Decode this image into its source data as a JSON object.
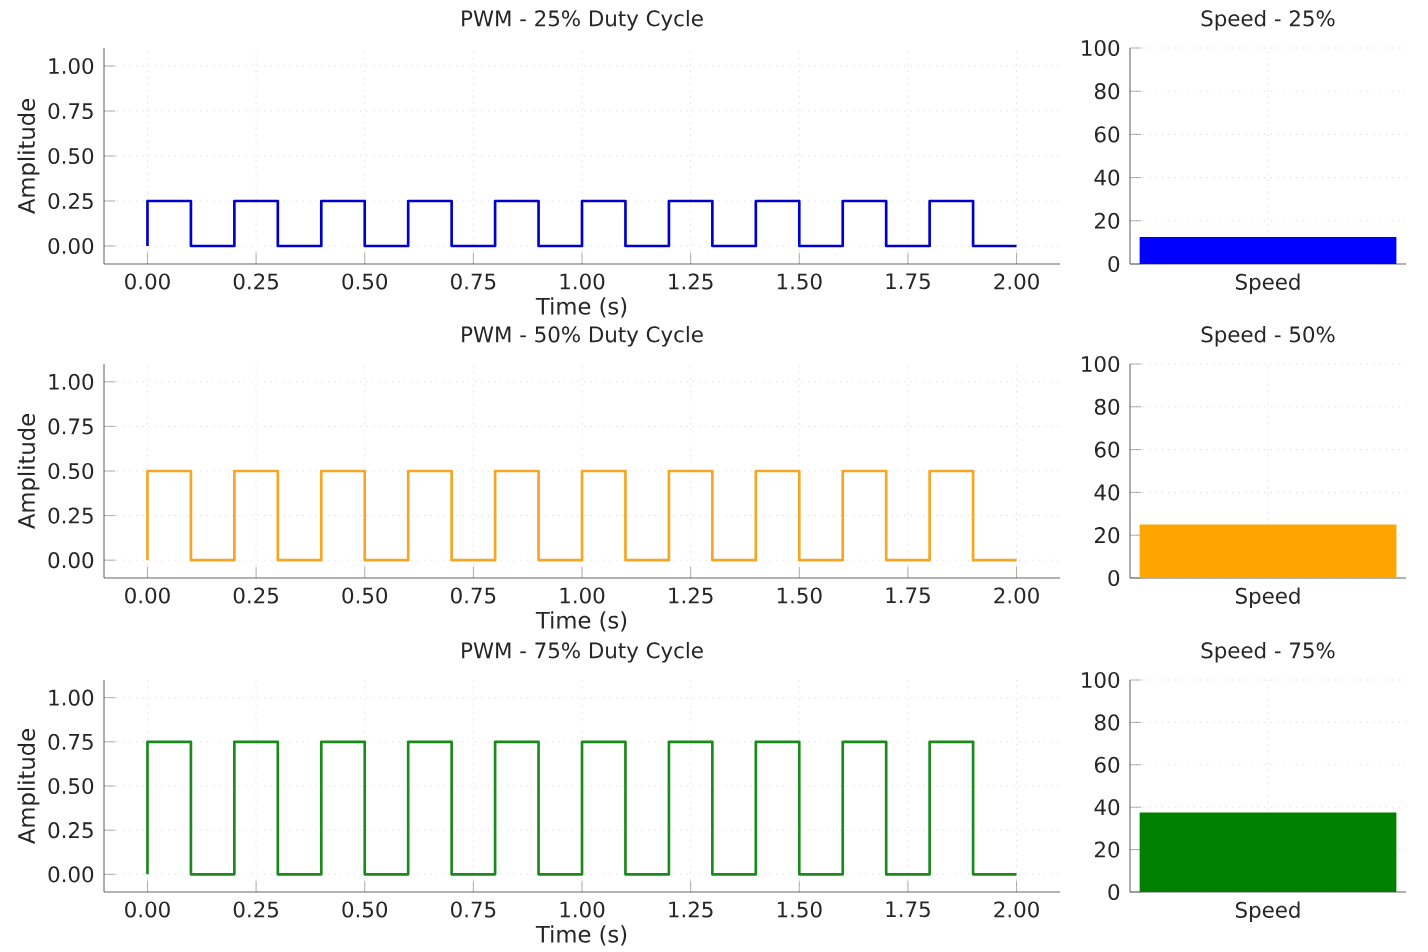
{
  "chart_data": [
    {
      "type": "line",
      "title": "PWM - 25% Duty Cycle",
      "xlabel": "Time (s)",
      "ylabel": "Amplitude",
      "grid": true,
      "xlim": [
        -0.1,
        2.1
      ],
      "ylim": [
        -0.1,
        1.1
      ],
      "xticks": [
        {
          "value": 0,
          "label": "0.00"
        },
        {
          "value": 0.25,
          "label": "0.25"
        },
        {
          "value": 0.5,
          "label": "0.50"
        },
        {
          "value": 0.75,
          "label": "0.75"
        },
        {
          "value": 1,
          "label": "1.00"
        },
        {
          "value": 1.25,
          "label": "1.25"
        },
        {
          "value": 1.5,
          "label": "1.50"
        },
        {
          "value": 1.75,
          "label": "1.75"
        },
        {
          "value": 2,
          "label": "2.00"
        }
      ],
      "yticks": [
        {
          "value": 0,
          "label": "0.00"
        },
        {
          "value": 0.25,
          "label": "0.25"
        },
        {
          "value": 0.5,
          "label": "0.50"
        },
        {
          "value": 0.75,
          "label": "0.75"
        },
        {
          "value": 1,
          "label": "1.00"
        }
      ],
      "series": [
        {
          "color": "#0000cc",
          "x": [
            0,
            0,
            0.1,
            0.1,
            0.2,
            0.2,
            0.3,
            0.3,
            0.4,
            0.4,
            0.5,
            0.5,
            0.6,
            0.6,
            0.7,
            0.7,
            0.8,
            0.8,
            0.9,
            0.9,
            1.0,
            1.0,
            1.1,
            1.1,
            1.2,
            1.2,
            1.3,
            1.3,
            1.4,
            1.4,
            1.5,
            1.5,
            1.6,
            1.6,
            1.7,
            1.7,
            1.8,
            1.8,
            1.9,
            1.9,
            2.0
          ],
          "values": [
            0,
            0.25,
            0.25,
            0,
            0,
            0.25,
            0.25,
            0,
            0,
            0.25,
            0.25,
            0,
            0,
            0.25,
            0.25,
            0,
            0,
            0.25,
            0.25,
            0,
            0,
            0.25,
            0.25,
            0,
            0,
            0.25,
            0.25,
            0,
            0,
            0.25,
            0.25,
            0,
            0,
            0.25,
            0.25,
            0,
            0,
            0.25,
            0.25,
            0,
            0
          ]
        }
      ]
    },
    {
      "type": "bar",
      "title": "Speed - 25%",
      "categories": [
        "Speed"
      ],
      "values": [
        12.5
      ],
      "color": "#0000ff",
      "grid": true,
      "ylim": [
        0,
        100
      ],
      "yticks": [
        0,
        20,
        40,
        60,
        80,
        100
      ]
    },
    {
      "type": "line",
      "title": "PWM - 50% Duty Cycle",
      "xlabel": "Time (s)",
      "ylabel": "Amplitude",
      "grid": true,
      "xlim": [
        -0.1,
        2.1
      ],
      "ylim": [
        -0.1,
        1.1
      ],
      "xticks": [
        {
          "value": 0,
          "label": "0.00"
        },
        {
          "value": 0.25,
          "label": "0.25"
        },
        {
          "value": 0.5,
          "label": "0.50"
        },
        {
          "value": 0.75,
          "label": "0.75"
        },
        {
          "value": 1,
          "label": "1.00"
        },
        {
          "value": 1.25,
          "label": "1.25"
        },
        {
          "value": 1.5,
          "label": "1.50"
        },
        {
          "value": 1.75,
          "label": "1.75"
        },
        {
          "value": 2,
          "label": "2.00"
        }
      ],
      "yticks": [
        {
          "value": 0,
          "label": "0.00"
        },
        {
          "value": 0.25,
          "label": "0.25"
        },
        {
          "value": 0.5,
          "label": "0.50"
        },
        {
          "value": 0.75,
          "label": "0.75"
        },
        {
          "value": 1,
          "label": "1.00"
        }
      ],
      "series": [
        {
          "color": "#f5a623",
          "x": [
            0,
            0,
            0.1,
            0.1,
            0.2,
            0.2,
            0.3,
            0.3,
            0.4,
            0.4,
            0.5,
            0.5,
            0.6,
            0.6,
            0.7,
            0.7,
            0.8,
            0.8,
            0.9,
            0.9,
            1.0,
            1.0,
            1.1,
            1.1,
            1.2,
            1.2,
            1.3,
            1.3,
            1.4,
            1.4,
            1.5,
            1.5,
            1.6,
            1.6,
            1.7,
            1.7,
            1.8,
            1.8,
            1.9,
            1.9,
            2.0
          ],
          "values": [
            0,
            0.5,
            0.5,
            0,
            0,
            0.5,
            0.5,
            0,
            0,
            0.5,
            0.5,
            0,
            0,
            0.5,
            0.5,
            0,
            0,
            0.5,
            0.5,
            0,
            0,
            0.5,
            0.5,
            0,
            0,
            0.5,
            0.5,
            0,
            0,
            0.5,
            0.5,
            0,
            0,
            0.5,
            0.5,
            0,
            0,
            0.5,
            0.5,
            0,
            0
          ]
        }
      ]
    },
    {
      "type": "bar",
      "title": "Speed - 50%",
      "categories": [
        "Speed"
      ],
      "values": [
        25
      ],
      "color": "#ffa500",
      "grid": true,
      "ylim": [
        0,
        100
      ],
      "yticks": [
        0,
        20,
        40,
        60,
        80,
        100
      ]
    },
    {
      "type": "line",
      "title": "PWM - 75% Duty Cycle",
      "xlabel": "Time (s)",
      "ylabel": "Amplitude",
      "grid": true,
      "xlim": [
        -0.1,
        2.1
      ],
      "ylim": [
        -0.1,
        1.1
      ],
      "xticks": [
        {
          "value": 0,
          "label": "0.00"
        },
        {
          "value": 0.25,
          "label": "0.25"
        },
        {
          "value": 0.5,
          "label": "0.50"
        },
        {
          "value": 0.75,
          "label": "0.75"
        },
        {
          "value": 1,
          "label": "1.00"
        },
        {
          "value": 1.25,
          "label": "1.25"
        },
        {
          "value": 1.5,
          "label": "1.50"
        },
        {
          "value": 1.75,
          "label": "1.75"
        },
        {
          "value": 2,
          "label": "2.00"
        }
      ],
      "yticks": [
        {
          "value": 0,
          "label": "0.00"
        },
        {
          "value": 0.25,
          "label": "0.25"
        },
        {
          "value": 0.5,
          "label": "0.50"
        },
        {
          "value": 0.75,
          "label": "0.75"
        },
        {
          "value": 1,
          "label": "1.00"
        }
      ],
      "series": [
        {
          "color": "#1a8a1a",
          "x": [
            0,
            0,
            0.1,
            0.1,
            0.2,
            0.2,
            0.3,
            0.3,
            0.4,
            0.4,
            0.5,
            0.5,
            0.6,
            0.6,
            0.7,
            0.7,
            0.8,
            0.8,
            0.9,
            0.9,
            1.0,
            1.0,
            1.1,
            1.1,
            1.2,
            1.2,
            1.3,
            1.3,
            1.4,
            1.4,
            1.5,
            1.5,
            1.6,
            1.6,
            1.7,
            1.7,
            1.8,
            1.8,
            1.9,
            1.9,
            2.0
          ],
          "values": [
            0,
            0.75,
            0.75,
            0,
            0,
            0.75,
            0.75,
            0,
            0,
            0.75,
            0.75,
            0,
            0,
            0.75,
            0.75,
            0,
            0,
            0.75,
            0.75,
            0,
            0,
            0.75,
            0.75,
            0,
            0,
            0.75,
            0.75,
            0,
            0,
            0.75,
            0.75,
            0,
            0,
            0.75,
            0.75,
            0,
            0,
            0.75,
            0.75,
            0,
            0
          ]
        }
      ]
    },
    {
      "type": "bar",
      "title": "Speed - 75%",
      "categories": [
        "Speed"
      ],
      "values": [
        37.5
      ],
      "color": "#008000",
      "grid": true,
      "ylim": [
        0,
        100
      ],
      "yticks": [
        0,
        20,
        40,
        60,
        80,
        100
      ]
    }
  ]
}
